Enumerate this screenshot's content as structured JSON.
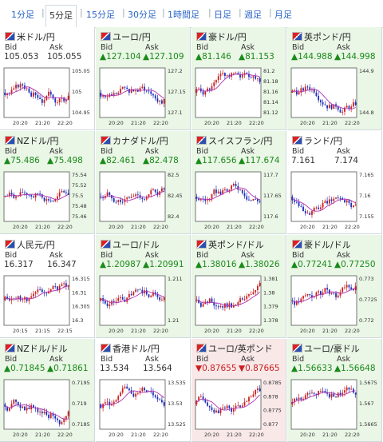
{
  "tabs": [
    "1分足",
    "5分足",
    "15分足",
    "30分足",
    "1時間足",
    "日足",
    "週足",
    "月足"
  ],
  "active_tab": 1,
  "labels": {
    "bid": "Bid",
    "ask": "Ask"
  },
  "colors": {
    "up": "#1a8a1a",
    "down": "#cc2020",
    "bg_up": "#eaf6e6",
    "bg_down": "#f8e8e8",
    "bg_flat": "#ffffff",
    "candle_up": "#cc2020",
    "candle_down": "#1f2fb8",
    "ma": "#b030b0"
  },
  "pairs": [
    {
      "name": "米ドル/円",
      "bid": "105.053",
      "ask": "105.055",
      "dir": "flat",
      "yticks": [
        "105.05",
        "105",
        "104.95"
      ],
      "xticks": [
        "20:20",
        "21:20",
        "22:20"
      ],
      "flag": "flag-us-jp-icon"
    },
    {
      "name": "ユーロ/円",
      "bid": "▲127.104",
      "ask": "▲127.109",
      "dir": "up",
      "yticks": [
        "127.2",
        "127.15",
        "127.1"
      ],
      "xticks": [
        "20:20",
        "21:20",
        "22:20"
      ],
      "flag": "flag-eu-jp-icon"
    },
    {
      "name": "豪ドル/円",
      "bid": "▲81.146",
      "ask": "▲81.153",
      "dir": "up",
      "yticks": [
        "81.2",
        "81.18",
        "81.16",
        "81.14",
        "81.12"
      ],
      "xticks": [
        "20:20",
        "21:20",
        "22:20"
      ],
      "flag": "flag-au-jp-icon"
    },
    {
      "name": "英ポンド/円",
      "bid": "▲144.988",
      "ask": "▲144.998",
      "dir": "up",
      "yticks": [
        "144.9",
        "144.8"
      ],
      "xticks": [
        "20:20",
        "21:20",
        "22:20"
      ],
      "flag": "flag-gb-jp-icon"
    },
    {
      "name": "NZドル/円",
      "bid": "▲75.486",
      "ask": "▲75.498",
      "dir": "up",
      "yticks": [
        "75.54",
        "75.52",
        "75.5",
        "75.48",
        "75.46"
      ],
      "xticks": [
        "20:20",
        "21:20",
        "22:20"
      ],
      "flag": "flag-nz-jp-icon"
    },
    {
      "name": "カナダドル/円",
      "bid": "▲82.461",
      "ask": "▲82.478",
      "dir": "up",
      "yticks": [
        "82.5",
        "82.45",
        "82.4"
      ],
      "xticks": [
        "20:20",
        "21:20",
        "22:20"
      ],
      "flag": "flag-ca-jp-icon"
    },
    {
      "name": "スイスフラン/円",
      "bid": "▲117.656",
      "ask": "▲117.674",
      "dir": "up",
      "yticks": [
        "117.7",
        "117.65",
        "117.6"
      ],
      "xticks": [
        "20:20",
        "21:20",
        "22:20"
      ],
      "flag": "flag-ch-jp-icon"
    },
    {
      "name": "ランド/円",
      "bid": "7.161",
      "ask": "7.174",
      "dir": "flat",
      "yticks": [
        "7.165",
        "7.16",
        "7.155"
      ],
      "xticks": [
        "20:20",
        "21:20",
        "22:20"
      ],
      "flag": "flag-za-jp-icon"
    },
    {
      "name": "人民元/円",
      "bid": "16.317",
      "ask": "16.347",
      "dir": "flat",
      "yticks": [
        "16.315",
        "16.31",
        "16.305",
        "16.3"
      ],
      "xticks": [
        "20:15",
        "21:15",
        "22:15"
      ],
      "flag": "flag-cn-jp-icon"
    },
    {
      "name": "ユーロ/ドル",
      "bid": "▲1.20987",
      "ask": "▲1.20991",
      "dir": "up",
      "yticks": [
        "1.211",
        "1.21"
      ],
      "xticks": [
        "20:20",
        "21:20",
        "22:20"
      ],
      "flag": "flag-eu-us-icon"
    },
    {
      "name": "英ポンド/ドル",
      "bid": "▲1.38016",
      "ask": "▲1.38026",
      "dir": "up",
      "yticks": [
        "1.381",
        "1.38",
        "1.379",
        "1.378"
      ],
      "xticks": [
        "20:20",
        "21:20",
        "22:20"
      ],
      "flag": "flag-gb-us-icon"
    },
    {
      "name": "豪ドル/ドル",
      "bid": "▲0.77241",
      "ask": "▲0.77250",
      "dir": "up",
      "yticks": [
        "0.773",
        "0.7725",
        "0.772"
      ],
      "xticks": [
        "20:20",
        "21:20",
        "22:20"
      ],
      "flag": "flag-au-us-icon"
    },
    {
      "name": "NZドル/ドル",
      "bid": "▲0.71845",
      "ask": "▲0.71861",
      "dir": "up",
      "yticks": [
        "0.7195",
        "0.719",
        "0.7185"
      ],
      "xticks": [
        "20:20",
        "21:20",
        "22:20"
      ],
      "flag": "flag-nz-us-icon"
    },
    {
      "name": "香港ドル/円",
      "bid": "13.534",
      "ask": "13.564",
      "dir": "flat",
      "yticks": [
        "13.535",
        "13.53",
        "13.525"
      ],
      "xticks": [
        "20:20",
        "21:20",
        "22:20"
      ],
      "flag": "flag-hk-jp-icon"
    },
    {
      "name": "ユーロ/英ポンド",
      "bid": "▼0.87655",
      "ask": "▼0.87665",
      "dir": "down",
      "yticks": [
        "0.8785",
        "0.878",
        "0.8775",
        "0.877"
      ],
      "xticks": [
        "20:20",
        "21:20",
        "22:20"
      ],
      "flag": "flag-eu-gb-icon"
    },
    {
      "name": "ユーロ/豪ドル",
      "bid": "▲1.56633",
      "ask": "▲1.56648",
      "dir": "up",
      "yticks": [
        "1.5675",
        "1.567",
        "1.5665"
      ],
      "xticks": [
        "20:20",
        "21:20",
        "22:20"
      ],
      "flag": "flag-eu-au-icon"
    }
  ]
}
